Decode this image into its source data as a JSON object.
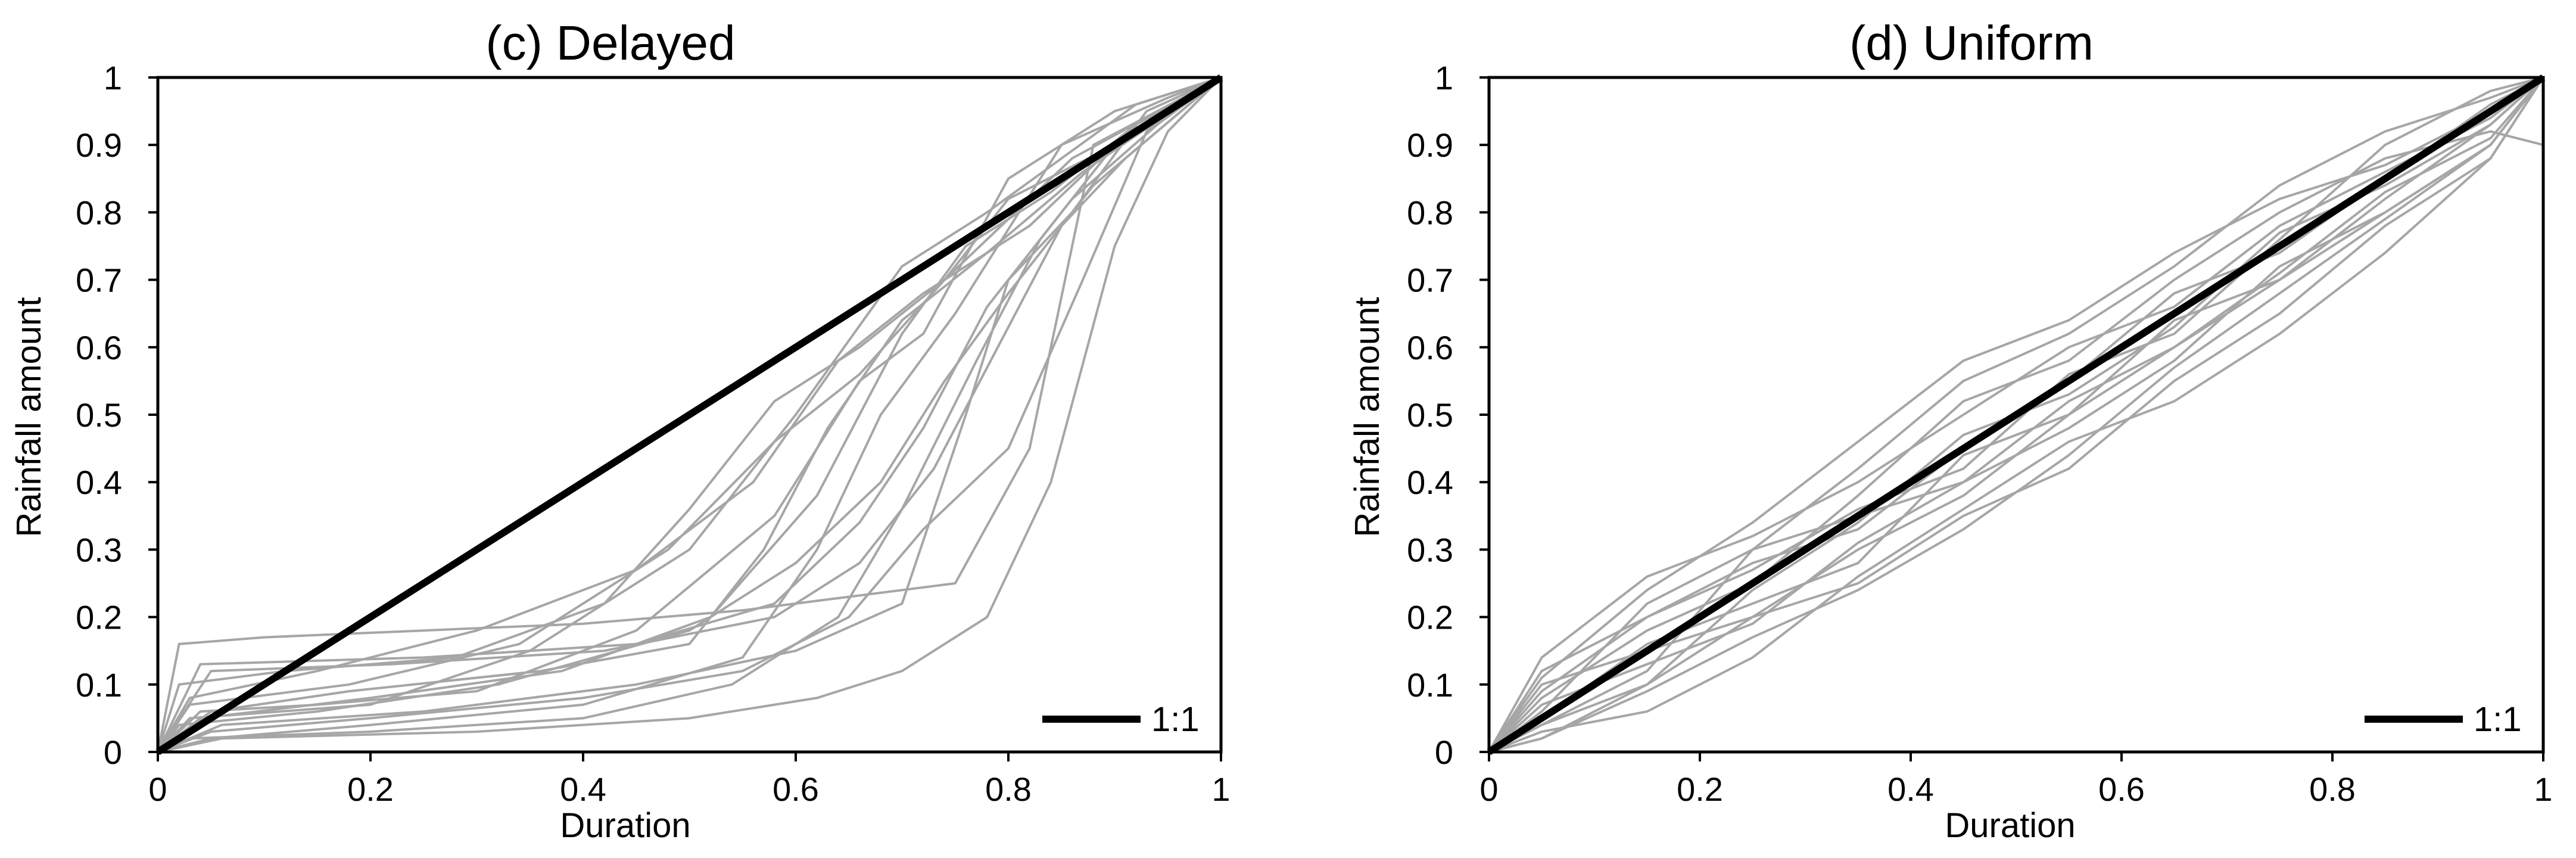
{
  "chart_data": [
    {
      "type": "line",
      "title": "(c) Delayed",
      "xlabel": "Duration",
      "ylabel": "Rainfall amount",
      "xlim": [
        0,
        1
      ],
      "ylim": [
        0,
        1
      ],
      "x_ticks": [
        "0",
        "0.2",
        "0.4",
        "0.6",
        "0.8",
        "1"
      ],
      "y_ticks": [
        "0",
        "0.1",
        "0.2",
        "0.3",
        "0.4",
        "0.5",
        "0.6",
        "0.7",
        "0.8",
        "0.9",
        "1"
      ],
      "grid": false,
      "legend": {
        "position": "bottom-right",
        "entries": [
          "1:1"
        ]
      },
      "reference_line": {
        "name": "1:1",
        "color": "#000000",
        "x": [
          0,
          1
        ],
        "y": [
          0,
          1
        ]
      },
      "series_color": "#a6a6a6",
      "series": [
        {
          "x": [
            0,
            0.05,
            0.2,
            0.4,
            0.55,
            0.62,
            0.68,
            0.75,
            0.85,
            0.95,
            1
          ],
          "y": [
            0,
            0.02,
            0.04,
            0.07,
            0.14,
            0.3,
            0.5,
            0.65,
            0.9,
            0.97,
            1
          ]
        },
        {
          "x": [
            0,
            0.04,
            0.15,
            0.3,
            0.45,
            0.58,
            0.66,
            0.72,
            0.8,
            0.9,
            1
          ],
          "y": [
            0,
            0.06,
            0.07,
            0.09,
            0.18,
            0.35,
            0.55,
            0.62,
            0.85,
            0.95,
            1
          ]
        },
        {
          "x": [
            0,
            0.02,
            0.1,
            0.25,
            0.4,
            0.55,
            0.65,
            0.75,
            0.82,
            0.88,
            1
          ],
          "y": [
            0,
            0.16,
            0.17,
            0.18,
            0.19,
            0.21,
            0.23,
            0.25,
            0.45,
            0.9,
            1
          ]
        },
        {
          "x": [
            0,
            0.03,
            0.2,
            0.35,
            0.5,
            0.6,
            0.7,
            0.78,
            0.85,
            0.92,
            1
          ],
          "y": [
            0,
            0.05,
            0.07,
            0.15,
            0.3,
            0.5,
            0.72,
            0.8,
            0.88,
            0.96,
            1
          ]
        },
        {
          "x": [
            0,
            0.06,
            0.25,
            0.45,
            0.6,
            0.7,
            0.76,
            0.8,
            0.86,
            0.93,
            1
          ],
          "y": [
            0,
            0.04,
            0.06,
            0.1,
            0.15,
            0.22,
            0.5,
            0.7,
            0.8,
            0.95,
            1
          ]
        },
        {
          "x": [
            0,
            0.03,
            0.15,
            0.3,
            0.45,
            0.56,
            0.64,
            0.72,
            0.82,
            0.9,
            1
          ],
          "y": [
            0,
            0.08,
            0.12,
            0.18,
            0.27,
            0.4,
            0.58,
            0.68,
            0.78,
            0.9,
            1
          ]
        },
        {
          "x": [
            0,
            0.05,
            0.2,
            0.4,
            0.55,
            0.65,
            0.72,
            0.8,
            0.87,
            0.93,
            1
          ],
          "y": [
            0,
            0.03,
            0.05,
            0.08,
            0.12,
            0.2,
            0.33,
            0.45,
            0.7,
            0.92,
            1
          ]
        },
        {
          "x": [
            0,
            0.02,
            0.12,
            0.28,
            0.42,
            0.5,
            0.58,
            0.66,
            0.74,
            0.86,
            1
          ],
          "y": [
            0,
            0.1,
            0.12,
            0.14,
            0.22,
            0.36,
            0.52,
            0.6,
            0.7,
            0.88,
            1
          ]
        },
        {
          "x": [
            0,
            0.04,
            0.2,
            0.38,
            0.52,
            0.62,
            0.7,
            0.76,
            0.84,
            0.92,
            1
          ],
          "y": [
            0,
            0.05,
            0.08,
            0.12,
            0.2,
            0.38,
            0.62,
            0.75,
            0.83,
            0.93,
            1
          ]
        },
        {
          "x": [
            0,
            0.06,
            0.3,
            0.5,
            0.62,
            0.7,
            0.78,
            0.84,
            0.9,
            0.95,
            1
          ],
          "y": [
            0,
            0.02,
            0.03,
            0.05,
            0.08,
            0.12,
            0.2,
            0.4,
            0.75,
            0.92,
            1
          ]
        },
        {
          "x": [
            0,
            0.03,
            0.18,
            0.34,
            0.48,
            0.58,
            0.66,
            0.74,
            0.8,
            0.9,
            1
          ],
          "y": [
            0,
            0.07,
            0.1,
            0.16,
            0.3,
            0.46,
            0.56,
            0.7,
            0.82,
            0.9,
            1
          ]
        },
        {
          "x": [
            0,
            0.05,
            0.22,
            0.42,
            0.58,
            0.66,
            0.73,
            0.79,
            0.85,
            0.91,
            1
          ],
          "y": [
            0,
            0.12,
            0.13,
            0.15,
            0.2,
            0.28,
            0.42,
            0.6,
            0.78,
            0.88,
            1
          ]
        },
        {
          "x": [
            0,
            0.02,
            0.15,
            0.32,
            0.5,
            0.6,
            0.68,
            0.74,
            0.8,
            0.88,
            1
          ],
          "y": [
            0,
            0.04,
            0.06,
            0.1,
            0.18,
            0.28,
            0.4,
            0.55,
            0.68,
            0.84,
            1
          ]
        },
        {
          "x": [
            0,
            0.04,
            0.25,
            0.45,
            0.58,
            0.66,
            0.72,
            0.78,
            0.86,
            0.94,
            1
          ],
          "y": [
            0,
            0.13,
            0.14,
            0.16,
            0.22,
            0.34,
            0.48,
            0.66,
            0.82,
            0.93,
            1
          ]
        },
        {
          "x": [
            0,
            0.03,
            0.2,
            0.4,
            0.54,
            0.64,
            0.7,
            0.77,
            0.83,
            0.9,
            1
          ],
          "y": [
            0,
            0.02,
            0.03,
            0.05,
            0.1,
            0.2,
            0.36,
            0.58,
            0.76,
            0.9,
            1
          ]
        },
        {
          "x": [
            0,
            0.05,
            0.18,
            0.36,
            0.5,
            0.57,
            0.63,
            0.7,
            0.78,
            0.87,
            1
          ],
          "y": [
            0,
            0.06,
            0.09,
            0.12,
            0.16,
            0.3,
            0.48,
            0.64,
            0.74,
            0.86,
            1
          ]
        }
      ]
    },
    {
      "type": "line",
      "title": "(d) Uniform",
      "xlabel": "Duration",
      "ylabel": "Rainfall amount",
      "xlim": [
        0,
        1
      ],
      "ylim": [
        0,
        1
      ],
      "x_ticks": [
        "0",
        "0.2",
        "0.4",
        "0.6",
        "0.8",
        "1"
      ],
      "y_ticks": [
        "0",
        "0.1",
        "0.2",
        "0.3",
        "0.4",
        "0.5",
        "0.6",
        "0.7",
        "0.8",
        "0.9",
        "1"
      ],
      "grid": false,
      "legend": {
        "position": "bottom-right",
        "entries": [
          "1:1"
        ]
      },
      "reference_line": {
        "name": "1:1",
        "color": "#000000",
        "x": [
          0,
          1
        ],
        "y": [
          0,
          1
        ]
      },
      "series_color": "#a6a6a6",
      "series": [
        {
          "x": [
            0,
            0.05,
            0.15,
            0.25,
            0.35,
            0.45,
            0.55,
            0.65,
            0.75,
            0.85,
            0.95,
            1
          ],
          "y": [
            0,
            0.12,
            0.2,
            0.28,
            0.33,
            0.45,
            0.55,
            0.68,
            0.74,
            0.85,
            0.96,
            1
          ]
        },
        {
          "x": [
            0,
            0.05,
            0.15,
            0.25,
            0.35,
            0.45,
            0.55,
            0.65,
            0.75,
            0.85,
            0.95,
            1
          ],
          "y": [
            0,
            0.02,
            0.1,
            0.2,
            0.3,
            0.38,
            0.5,
            0.6,
            0.7,
            0.82,
            0.93,
            1
          ]
        },
        {
          "x": [
            0,
            0.05,
            0.15,
            0.25,
            0.35,
            0.45,
            0.55,
            0.65,
            0.75,
            0.85,
            0.95,
            1
          ],
          "y": [
            0,
            0.08,
            0.18,
            0.25,
            0.38,
            0.52,
            0.58,
            0.7,
            0.8,
            0.88,
            0.92,
            0.9
          ]
        },
        {
          "x": [
            0,
            0.05,
            0.15,
            0.25,
            0.35,
            0.45,
            0.55,
            0.65,
            0.75,
            0.85,
            0.95,
            1
          ],
          "y": [
            0,
            0.04,
            0.12,
            0.3,
            0.35,
            0.4,
            0.48,
            0.58,
            0.72,
            0.8,
            0.9,
            1
          ]
        },
        {
          "x": [
            0,
            0.05,
            0.15,
            0.25,
            0.35,
            0.45,
            0.55,
            0.65,
            0.75,
            0.85,
            0.95,
            1
          ],
          "y": [
            0,
            0.1,
            0.15,
            0.2,
            0.25,
            0.35,
            0.42,
            0.55,
            0.65,
            0.78,
            0.88,
            1
          ]
        },
        {
          "x": [
            0,
            0.05,
            0.15,
            0.25,
            0.35,
            0.45,
            0.55,
            0.65,
            0.75,
            0.85,
            0.95,
            1
          ],
          "y": [
            0,
            0.06,
            0.22,
            0.3,
            0.42,
            0.55,
            0.62,
            0.72,
            0.84,
            0.92,
            0.97,
            1
          ]
        },
        {
          "x": [
            0,
            0.05,
            0.15,
            0.25,
            0.35,
            0.45,
            0.55,
            0.65,
            0.75,
            0.85,
            0.95,
            1
          ],
          "y": [
            0,
            0.03,
            0.06,
            0.14,
            0.26,
            0.36,
            0.46,
            0.52,
            0.62,
            0.74,
            0.88,
            1
          ]
        },
        {
          "x": [
            0,
            0.05,
            0.15,
            0.25,
            0.35,
            0.45,
            0.55,
            0.65,
            0.75,
            0.85,
            0.95,
            1
          ],
          "y": [
            0,
            0.14,
            0.26,
            0.32,
            0.4,
            0.5,
            0.6,
            0.66,
            0.78,
            0.86,
            0.94,
            1
          ]
        },
        {
          "x": [
            0,
            0.05,
            0.15,
            0.25,
            0.35,
            0.45,
            0.55,
            0.65,
            0.75,
            0.85,
            0.95,
            1
          ],
          "y": [
            0,
            0.05,
            0.16,
            0.22,
            0.28,
            0.44,
            0.5,
            0.64,
            0.7,
            0.8,
            0.9,
            1
          ]
        },
        {
          "x": [
            0,
            0.05,
            0.15,
            0.25,
            0.35,
            0.45,
            0.55,
            0.65,
            0.75,
            0.85,
            0.95,
            1
          ],
          "y": [
            0,
            0.09,
            0.2,
            0.27,
            0.36,
            0.42,
            0.56,
            0.62,
            0.76,
            0.9,
            0.98,
            1
          ]
        },
        {
          "x": [
            0,
            0.05,
            0.15,
            0.25,
            0.35,
            0.45,
            0.55,
            0.65,
            0.75,
            0.85,
            0.95,
            1
          ],
          "y": [
            0,
            0.02,
            0.09,
            0.17,
            0.24,
            0.33,
            0.44,
            0.57,
            0.68,
            0.79,
            0.9,
            1
          ]
        },
        {
          "x": [
            0,
            0.05,
            0.15,
            0.25,
            0.35,
            0.45,
            0.55,
            0.65,
            0.75,
            0.85,
            0.95,
            1
          ],
          "y": [
            0,
            0.11,
            0.24,
            0.34,
            0.46,
            0.58,
            0.64,
            0.74,
            0.82,
            0.87,
            0.95,
            1
          ]
        },
        {
          "x": [
            0,
            0.05,
            0.15,
            0.25,
            0.35,
            0.45,
            0.55,
            0.65,
            0.75,
            0.85,
            0.95,
            1
          ],
          "y": [
            0,
            0.07,
            0.13,
            0.19,
            0.31,
            0.4,
            0.52,
            0.6,
            0.71,
            0.83,
            0.91,
            1
          ]
        },
        {
          "x": [
            0,
            0.05,
            0.15,
            0.25,
            0.35,
            0.45,
            0.55,
            0.65,
            0.75,
            0.85,
            0.95,
            1
          ],
          "y": [
            0,
            0.04,
            0.1,
            0.24,
            0.34,
            0.47,
            0.53,
            0.63,
            0.77,
            0.84,
            0.93,
            1
          ]
        }
      ]
    }
  ]
}
